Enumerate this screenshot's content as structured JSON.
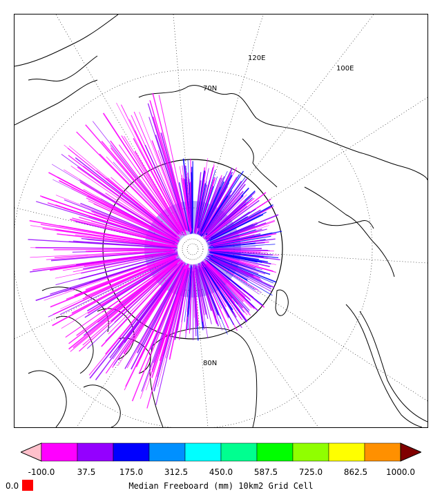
{
  "map": {
    "projection": "north-polar-stereographic",
    "parallels": [
      "70N",
      "80N"
    ],
    "meridians": [
      "120E",
      "100E"
    ],
    "grid_style": "dotted",
    "data_mask_hole": "pole-hole"
  },
  "colorbar": {
    "title": "Median Freeboard (mm) 10km2 Grid Cell",
    "ticks": [
      "-100.0",
      "37.5",
      "175.0",
      "312.5",
      "450.0",
      "587.5",
      "725.0",
      "862.5",
      "1000.0"
    ],
    "colors": [
      "#ff00ff",
      "#9400ff",
      "#0000ff",
      "#0090ff",
      "#00ffff",
      "#00ff90",
      "#00ff00",
      "#90ff00",
      "#ffff00",
      "#ff9000"
    ],
    "under_color": "#ffc0cb",
    "over_color": "#800000",
    "zero_label": "0.0",
    "zero_color": "#ff0000"
  }
}
